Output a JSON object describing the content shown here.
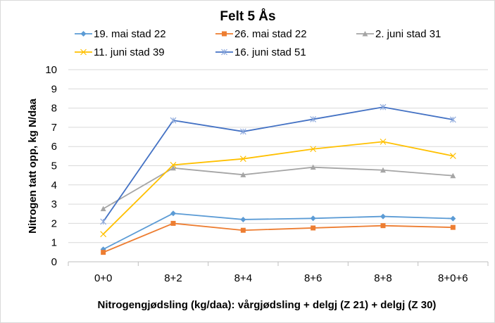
{
  "chart_data": {
    "type": "line",
    "title": "Felt 5 Ås",
    "xlabel": "Nitrogengjødsling (kg/daa): vårgjødsling + delgj (Z 21) + delgj (Z 30)",
    "ylabel": "Nitrogen tatt opp, kg N/daa",
    "categories": [
      "0+0",
      "8+2",
      "8+4",
      "8+6",
      "8+8",
      "8+0+6"
    ],
    "ylim": [
      0,
      10
    ],
    "yticks": [
      0,
      1,
      2,
      3,
      4,
      5,
      6,
      7,
      8,
      9,
      10
    ],
    "grid": true,
    "legend_position": "top",
    "series": [
      {
        "name": "19. mai stad 22",
        "color": "#5b9bd5",
        "marker": "diamond",
        "values": [
          0.65,
          2.52,
          2.2,
          2.26,
          2.36,
          2.25
        ]
      },
      {
        "name": "26. mai stad 22",
        "color": "#ed7d31",
        "marker": "square",
        "values": [
          0.49,
          2.0,
          1.64,
          1.76,
          1.88,
          1.79
        ]
      },
      {
        "name": "2. juni stad 31",
        "color": "#a5a5a5",
        "marker": "triangle",
        "values": [
          2.76,
          4.88,
          4.53,
          4.92,
          4.77,
          4.48
        ]
      },
      {
        "name": "11. juni stad 39",
        "color": "#ffc000",
        "marker": "x",
        "values": [
          1.44,
          5.04,
          5.36,
          5.87,
          6.25,
          5.51
        ]
      },
      {
        "name": "16. juni stad 51",
        "color": "#4472c4",
        "marker": "star",
        "values": [
          2.09,
          7.36,
          6.78,
          7.42,
          8.05,
          7.4
        ]
      }
    ]
  }
}
